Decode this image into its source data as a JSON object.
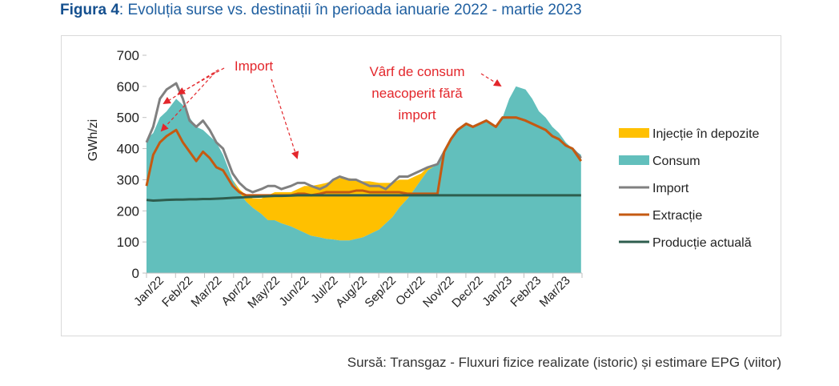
{
  "title": {
    "prefix": "Figura 4",
    "text": ": Evoluția surse vs. destinații în perioada ianuarie 2022 - martie 2023"
  },
  "source": "Sursă: Transgaz - Fluxuri fizice realizate (istoric) și estimare EPG (viitor)",
  "colors": {
    "injectie": "#ffc000",
    "consum": "#62bfbc",
    "import": "#808080",
    "extractie": "#c55a11",
    "productie": "#2e5d4e",
    "annotation": "#e3262b"
  },
  "chart_data": {
    "type": "area",
    "ylabel": "GWh/zi",
    "ylim": [
      0,
      700
    ],
    "yticks": [
      0,
      100,
      200,
      300,
      400,
      500,
      600,
      700
    ],
    "xlabels": [
      "Jan/22",
      "Feb/22",
      "Mar/22",
      "Apr/22",
      "May/22",
      "Jun/22",
      "Jul/22",
      "Aug/22",
      "Sep/22",
      "Oct/22",
      "Nov/22",
      "Dec/22",
      "Jan/23",
      "Feb/23",
      "Mar/23"
    ],
    "x": [
      "2022-01-01",
      "2022-01-08",
      "2022-01-15",
      "2022-01-22",
      "2022-02-01",
      "2022-02-08",
      "2022-02-15",
      "2022-02-22",
      "2022-03-01",
      "2022-03-08",
      "2022-03-15",
      "2022-03-22",
      "2022-04-01",
      "2022-04-08",
      "2022-04-15",
      "2022-04-22",
      "2022-05-01",
      "2022-05-08",
      "2022-05-15",
      "2022-05-22",
      "2022-06-01",
      "2022-06-08",
      "2022-06-15",
      "2022-06-22",
      "2022-07-01",
      "2022-07-08",
      "2022-07-15",
      "2022-07-22",
      "2022-08-01",
      "2022-08-08",
      "2022-08-15",
      "2022-08-22",
      "2022-09-01",
      "2022-09-08",
      "2022-09-15",
      "2022-09-22",
      "2022-10-01",
      "2022-10-08",
      "2022-10-15",
      "2022-10-22",
      "2022-11-01",
      "2022-11-08",
      "2022-11-15",
      "2022-11-22",
      "2022-12-01",
      "2022-12-08",
      "2022-12-15",
      "2022-12-22",
      "2023-01-01",
      "2023-01-08",
      "2023-01-15",
      "2023-01-22",
      "2023-02-01",
      "2023-02-08",
      "2023-02-15",
      "2023-02-22",
      "2023-03-01",
      "2023-03-08",
      "2023-03-15",
      "2023-03-22",
      "2023-03-31"
    ],
    "series": [
      {
        "name": "Injecție în depozite",
        "kind": "area",
        "values": [
          0,
          0,
          0,
          0,
          0,
          0,
          0,
          0,
          0,
          0,
          0,
          0,
          0,
          10,
          20,
          30,
          50,
          80,
          90,
          100,
          110,
          130,
          150,
          160,
          170,
          180,
          190,
          200,
          200,
          190,
          180,
          170,
          150,
          130,
          110,
          90,
          60,
          40,
          20,
          10,
          0,
          0,
          0,
          0,
          0,
          0,
          0,
          0,
          0,
          0,
          0,
          0,
          0,
          0,
          0,
          0,
          0,
          0,
          0,
          0,
          0
        ]
      },
      {
        "name": "Consum",
        "kind": "area",
        "values": [
          430,
          450,
          500,
          520,
          560,
          540,
          500,
          470,
          460,
          440,
          420,
          380,
          300,
          260,
          230,
          210,
          190,
          170,
          170,
          160,
          150,
          140,
          130,
          120,
          115,
          110,
          108,
          105,
          105,
          110,
          115,
          125,
          140,
          160,
          180,
          210,
          240,
          270,
          300,
          330,
          350,
          390,
          430,
          460,
          480,
          470,
          480,
          490,
          470,
          500,
          560,
          600,
          590,
          560,
          520,
          500,
          470,
          450,
          420,
          400,
          380
        ]
      },
      {
        "name": "Import",
        "kind": "line",
        "values": [
          420,
          470,
          560,
          590,
          610,
          560,
          490,
          470,
          490,
          460,
          420,
          400,
          320,
          290,
          270,
          260,
          270,
          280,
          280,
          270,
          280,
          290,
          290,
          280,
          270,
          280,
          300,
          310,
          300,
          300,
          290,
          280,
          280,
          270,
          290,
          310,
          310,
          320,
          330,
          340,
          350,
          390,
          430,
          460,
          480,
          470,
          480,
          490,
          470,
          500,
          500,
          500,
          490,
          480,
          470,
          460,
          440,
          430,
          410,
          400,
          370
        ]
      },
      {
        "name": "Extracție",
        "kind": "line",
        "values": [
          280,
          380,
          420,
          440,
          460,
          420,
          390,
          360,
          390,
          370,
          340,
          330,
          280,
          260,
          250,
          250,
          250,
          250,
          250,
          250,
          250,
          255,
          255,
          250,
          255,
          260,
          260,
          260,
          260,
          265,
          265,
          260,
          260,
          260,
          260,
          260,
          255,
          255,
          255,
          255,
          255,
          390,
          430,
          460,
          480,
          470,
          480,
          490,
          470,
          500,
          500,
          500,
          490,
          480,
          470,
          460,
          440,
          430,
          410,
          400,
          360
        ]
      },
      {
        "name": "Producție actuală",
        "kind": "line",
        "values": [
          235,
          233,
          234,
          235,
          236,
          236,
          237,
          237,
          238,
          238,
          239,
          240,
          242,
          243,
          244,
          245,
          246,
          247,
          248,
          248,
          249,
          250,
          250,
          250,
          250,
          250,
          250,
          250,
          250,
          250,
          250,
          250,
          250,
          250,
          250,
          250,
          250,
          250,
          250,
          250,
          250,
          250,
          250,
          250,
          250,
          250,
          250,
          250,
          250,
          250,
          250,
          250,
          250,
          250,
          250,
          250,
          250,
          250,
          250,
          250,
          250
        ]
      }
    ],
    "legend_position": "right",
    "annotations": [
      {
        "text": "Import"
      },
      {
        "text_lines": [
          "Vârf de consum",
          "neacoperit fără",
          "import"
        ]
      }
    ]
  }
}
